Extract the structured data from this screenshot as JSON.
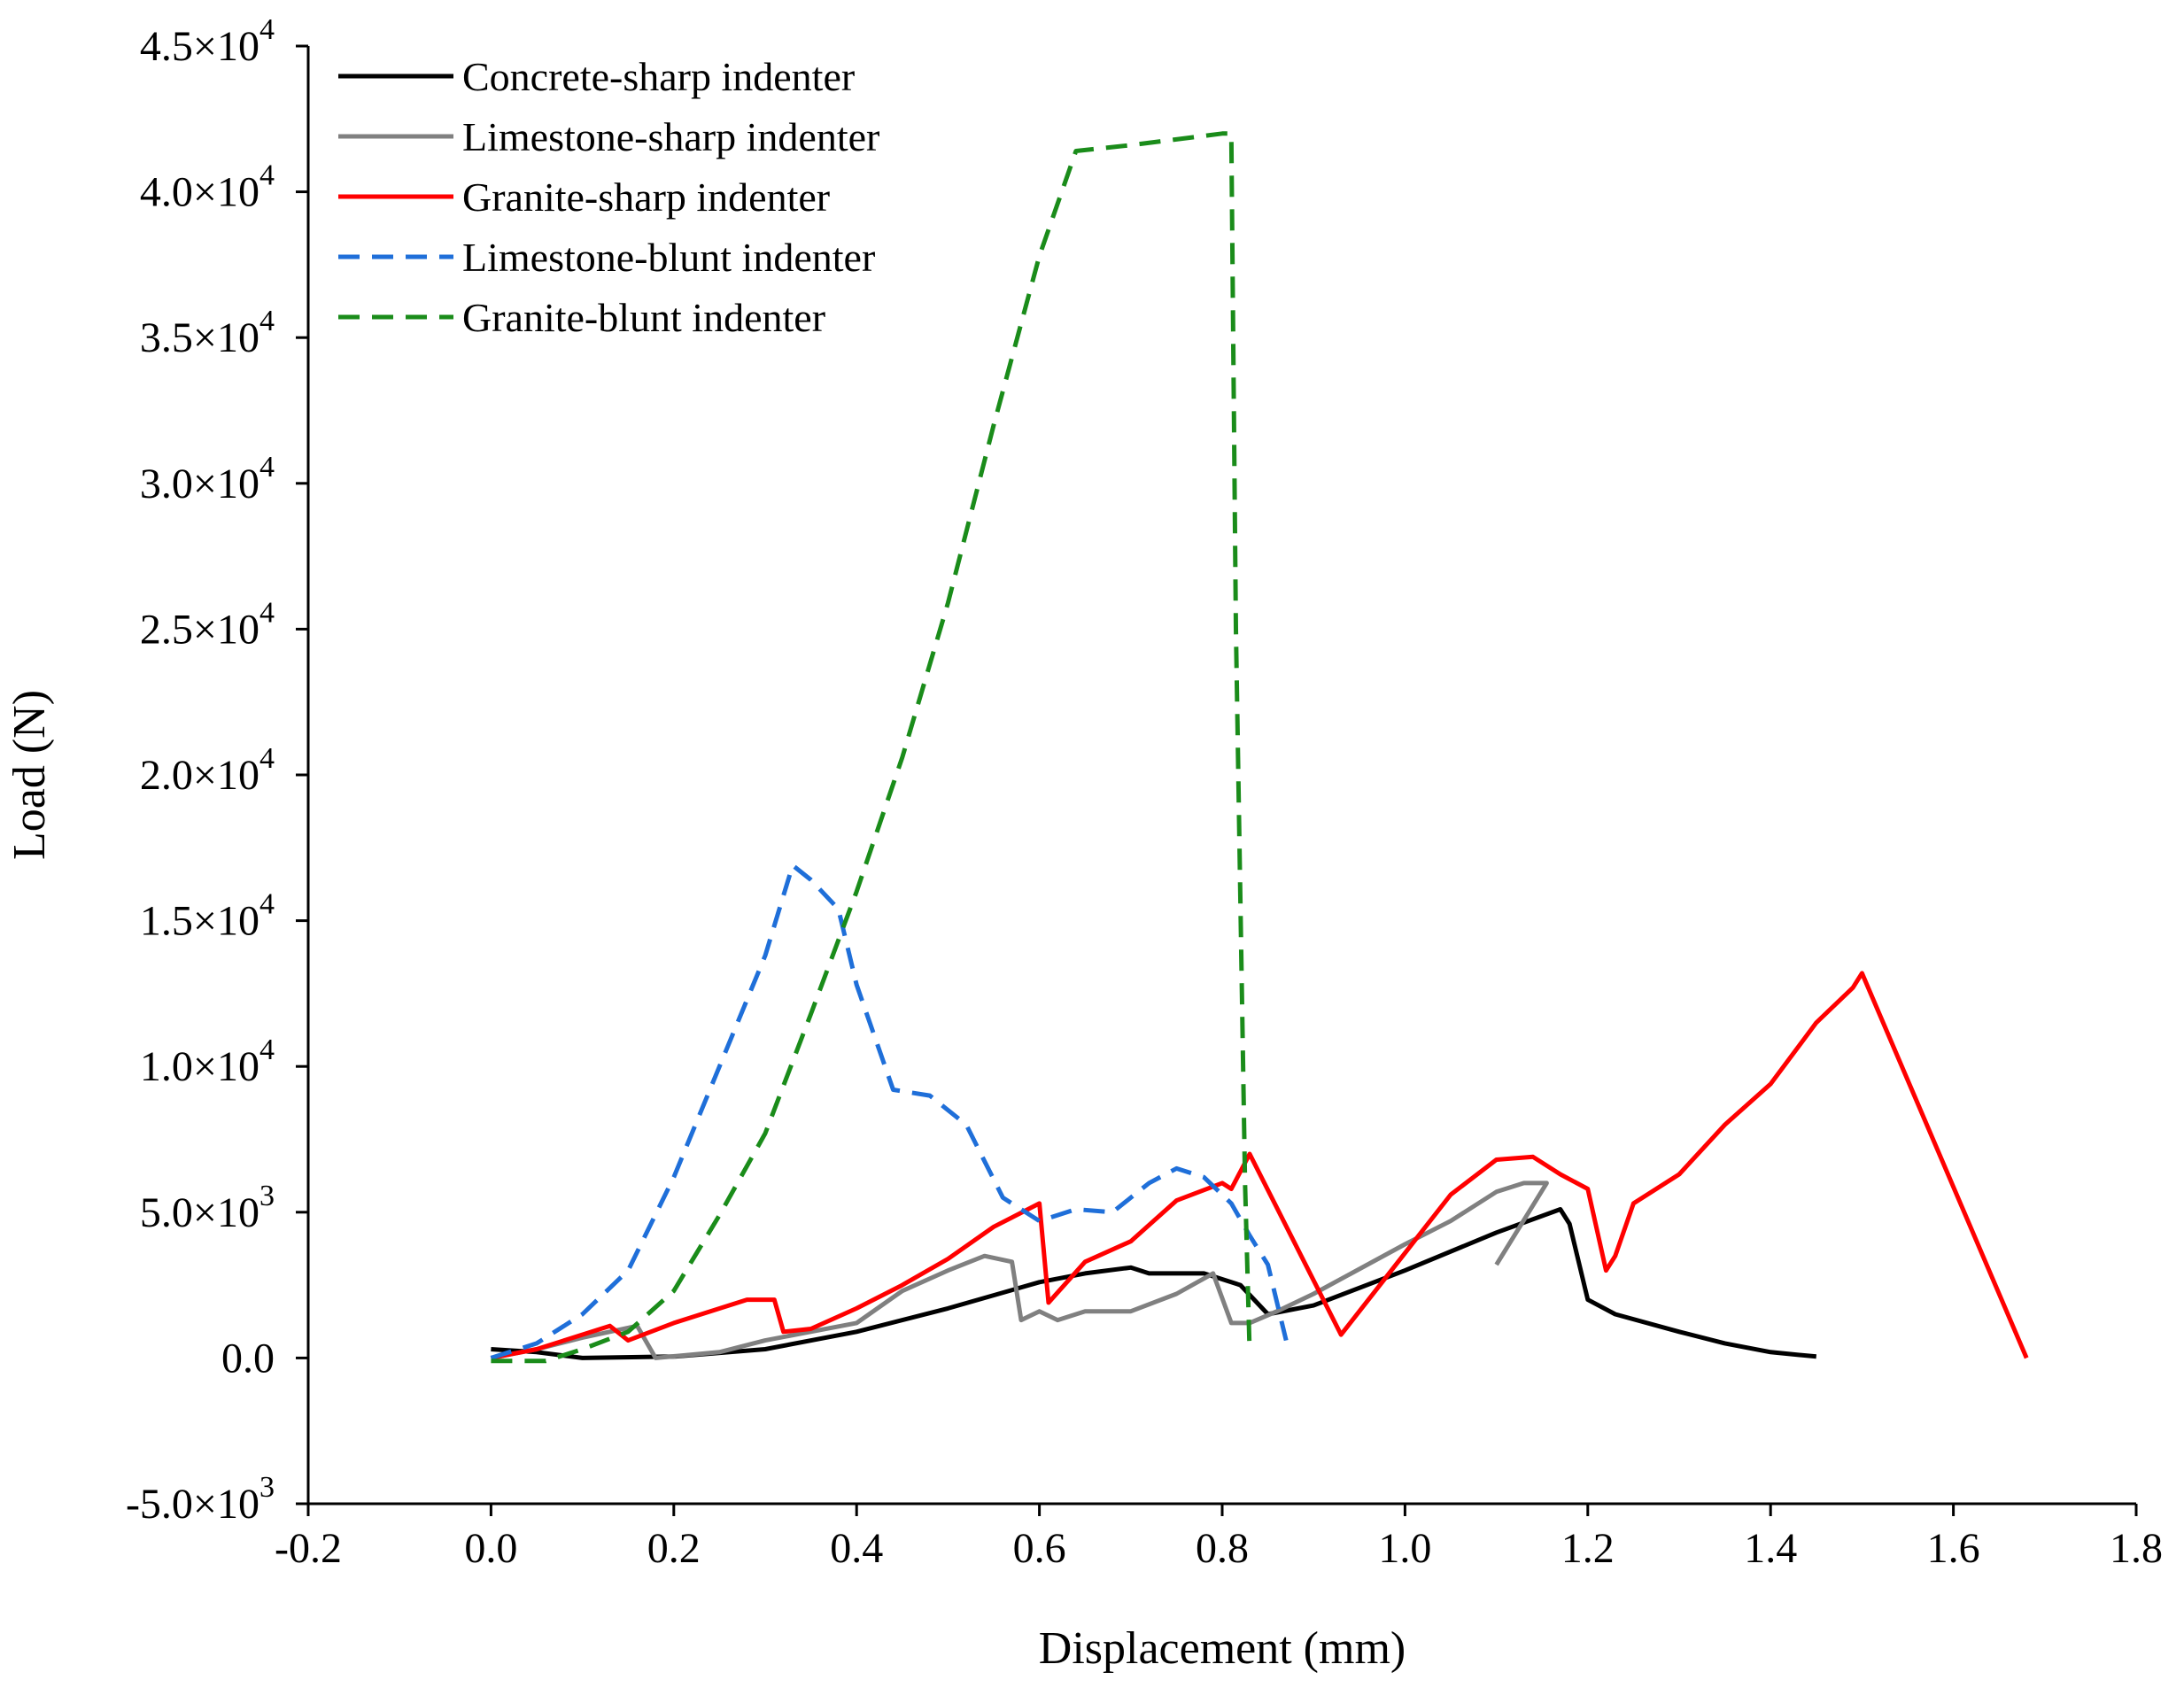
{
  "chart_data": {
    "type": "line",
    "title": "",
    "xlabel": "Displacement (mm)",
    "ylabel": "Load (N)",
    "xlim": [
      -0.2,
      1.8
    ],
    "ylim": [
      -5000,
      45000
    ],
    "grid": false,
    "legend_position": "top-left",
    "x_ticks": [
      -0.2,
      0.0,
      0.2,
      0.4,
      0.6,
      0.8,
      1.0,
      1.2,
      1.4,
      1.6,
      1.8
    ],
    "x_tick_labels": [
      "-0.2",
      "0.0",
      "0.2",
      "0.4",
      "0.6",
      "0.8",
      "1.0",
      "1.2",
      "1.4",
      "1.6",
      "1.8"
    ],
    "y_ticks": [
      -5000,
      0,
      5000,
      10000,
      15000,
      20000,
      25000,
      30000,
      35000,
      40000,
      45000
    ],
    "y_tick_labels": [
      {
        "mant": "-5.0×10",
        "exp": "3"
      },
      {
        "mant": "0.0",
        "exp": ""
      },
      {
        "mant": "5.0×10",
        "exp": "3"
      },
      {
        "mant": "1.0×10",
        "exp": "4"
      },
      {
        "mant": "1.5×10",
        "exp": "4"
      },
      {
        "mant": "2.0×10",
        "exp": "4"
      },
      {
        "mant": "2.5×10",
        "exp": "4"
      },
      {
        "mant": "3.0×10",
        "exp": "4"
      },
      {
        "mant": "3.5×10",
        "exp": "4"
      },
      {
        "mant": "4.0×10",
        "exp": "4"
      },
      {
        "mant": "4.5×10",
        "exp": "4"
      }
    ],
    "series": [
      {
        "name": "Concrete-sharp indenter",
        "color": "#000000",
        "dash": "solid",
        "x": [
          0.0,
          0.05,
          0.1,
          0.2,
          0.3,
          0.4,
          0.5,
          0.6,
          0.65,
          0.7,
          0.72,
          0.78,
          0.82,
          0.85,
          0.9,
          1.0,
          1.1,
          1.17,
          1.18,
          1.2,
          1.23,
          1.3,
          1.35,
          1.4,
          1.45
        ],
        "y": [
          300,
          200,
          0,
          50,
          300,
          900,
          1700,
          2600,
          2900,
          3100,
          2900,
          2900,
          2500,
          1500,
          1800,
          3000,
          4300,
          5100,
          4600,
          2000,
          1500,
          900,
          500,
          200,
          50
        ]
      },
      {
        "name": "Limestone-sharp indenter",
        "color": "#808080",
        "dash": "solid",
        "x": [
          0.0,
          0.05,
          0.1,
          0.16,
          0.18,
          0.25,
          0.3,
          0.4,
          0.45,
          0.5,
          0.54,
          0.57,
          0.58,
          0.6,
          0.62,
          0.65,
          0.7,
          0.75,
          0.79,
          0.81,
          0.83,
          0.86,
          0.9,
          1.0,
          1.05,
          1.1,
          1.13,
          1.155,
          1.1
        ],
        "y": [
          0,
          300,
          700,
          1100,
          0,
          200,
          600,
          1200,
          2300,
          3000,
          3500,
          3300,
          1300,
          1600,
          1300,
          1600,
          1600,
          2200,
          2900,
          1200,
          1200,
          1600,
          2200,
          3900,
          4700,
          5700,
          6000,
          6000,
          3200
        ]
      },
      {
        "name": "Granite-sharp indenter",
        "color": "#ff0000",
        "dash": "solid",
        "x": [
          0.0,
          0.05,
          0.13,
          0.15,
          0.2,
          0.28,
          0.31,
          0.32,
          0.35,
          0.4,
          0.45,
          0.5,
          0.55,
          0.6,
          0.61,
          0.65,
          0.7,
          0.75,
          0.8,
          0.81,
          0.83,
          0.93,
          1.0,
          1.05,
          1.1,
          1.14,
          1.17,
          1.2,
          1.22,
          1.23,
          1.25,
          1.3,
          1.35,
          1.4,
          1.45,
          1.49,
          1.5,
          1.68
        ],
        "y": [
          0,
          300,
          1100,
          600,
          1200,
          2000,
          2000,
          900,
          1000,
          1700,
          2500,
          3400,
          4500,
          5300,
          1900,
          3300,
          4000,
          5400,
          6000,
          5800,
          7000,
          800,
          3600,
          5600,
          6800,
          6900,
          6300,
          5800,
          3000,
          3500,
          5300,
          6300,
          8000,
          9400,
          11500,
          12700,
          13200,
          0
        ]
      },
      {
        "name": "Limestone-blunt indenter",
        "color": "#1f6fd9",
        "dash": "dashed",
        "x": [
          0.0,
          0.05,
          0.1,
          0.15,
          0.2,
          0.25,
          0.3,
          0.33,
          0.35,
          0.38,
          0.4,
          0.44,
          0.46,
          0.48,
          0.52,
          0.56,
          0.6,
          0.64,
          0.68,
          0.72,
          0.75,
          0.78,
          0.81,
          0.83,
          0.85,
          0.87
        ],
        "y": [
          0,
          500,
          1500,
          3000,
          6200,
          10000,
          13800,
          16900,
          16400,
          15400,
          12800,
          9200,
          9100,
          9000,
          8000,
          5500,
          4700,
          5100,
          5000,
          6000,
          6500,
          6200,
          5300,
          4200,
          3200,
          600
        ]
      },
      {
        "name": "Granite-blunt indenter",
        "color": "#1a8c1a",
        "dash": "dashed",
        "x": [
          0.0,
          0.06,
          0.1,
          0.15,
          0.2,
          0.25,
          0.3,
          0.35,
          0.4,
          0.45,
          0.5,
          0.55,
          0.6,
          0.64,
          0.7,
          0.8,
          0.81,
          0.815,
          0.825,
          0.83
        ],
        "y": [
          -100,
          -100,
          300,
          900,
          2300,
          4900,
          7700,
          11800,
          16000,
          20600,
          25900,
          32000,
          37800,
          41400,
          41600,
          42000,
          42000,
          25000,
          6000,
          200
        ]
      }
    ]
  }
}
